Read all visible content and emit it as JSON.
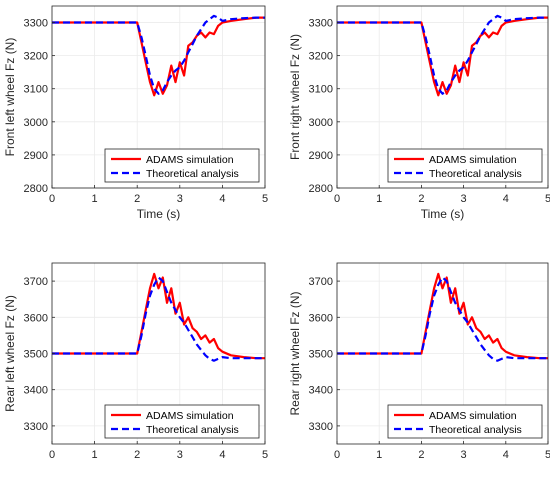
{
  "chart_data": [
    {
      "type": "line",
      "title": "",
      "xlabel": "Time (s)",
      "ylabel": "Front left wheel Fz (N)",
      "xlim": [
        0,
        5
      ],
      "ylim": [
        2800,
        3350
      ],
      "xticks": [
        0,
        1,
        2,
        3,
        4,
        5
      ],
      "yticks": [
        2800,
        2900,
        3000,
        3100,
        3200,
        3300
      ],
      "grid": true,
      "legend_position": "bottom-right",
      "series": [
        {
          "name": "ADAMS simulation",
          "style": "solid",
          "x": [
            0,
            2.0,
            2.1,
            2.2,
            2.3,
            2.4,
            2.5,
            2.6,
            2.7,
            2.8,
            2.9,
            3.0,
            3.1,
            3.2,
            3.3,
            3.4,
            3.5,
            3.6,
            3.7,
            3.8,
            3.9,
            4.0,
            4.2,
            4.5,
            4.8,
            5.0
          ],
          "y": [
            3300,
            3300,
            3240,
            3180,
            3120,
            3080,
            3120,
            3085,
            3110,
            3170,
            3120,
            3180,
            3140,
            3230,
            3240,
            3260,
            3270,
            3255,
            3270,
            3265,
            3290,
            3300,
            3305,
            3310,
            3315,
            3315
          ]
        },
        {
          "name": "Theoretical analysis",
          "style": "dashed",
          "x": [
            0,
            2.0,
            2.1,
            2.2,
            2.3,
            2.4,
            2.5,
            2.6,
            2.7,
            2.8,
            2.9,
            3.0,
            3.1,
            3.2,
            3.3,
            3.4,
            3.5,
            3.6,
            3.7,
            3.8,
            3.9,
            4.0,
            4.2,
            4.5,
            4.8,
            5.0
          ],
          "y": [
            3300,
            3300,
            3255,
            3200,
            3140,
            3100,
            3085,
            3095,
            3120,
            3140,
            3155,
            3165,
            3185,
            3210,
            3235,
            3260,
            3280,
            3300,
            3310,
            3320,
            3315,
            3305,
            3310,
            3313,
            3315,
            3315
          ]
        }
      ]
    },
    {
      "type": "line",
      "title": "",
      "xlabel": "Time (s)",
      "ylabel": "Front right wheel Fz (N)",
      "xlim": [
        0,
        5
      ],
      "ylim": [
        2800,
        3350
      ],
      "xticks": [
        0,
        1,
        2,
        3,
        4,
        5
      ],
      "yticks": [
        2800,
        2900,
        3000,
        3100,
        3200,
        3300
      ],
      "grid": true,
      "legend_position": "bottom-right",
      "series": [
        {
          "name": "ADAMS simulation",
          "style": "solid",
          "x": [
            0,
            2.0,
            2.1,
            2.2,
            2.3,
            2.4,
            2.5,
            2.6,
            2.7,
            2.8,
            2.9,
            3.0,
            3.1,
            3.2,
            3.3,
            3.4,
            3.5,
            3.6,
            3.7,
            3.8,
            3.9,
            4.0,
            4.2,
            4.5,
            4.8,
            5.0
          ],
          "y": [
            3300,
            3300,
            3240,
            3180,
            3120,
            3080,
            3120,
            3085,
            3110,
            3170,
            3120,
            3180,
            3140,
            3230,
            3240,
            3260,
            3270,
            3255,
            3270,
            3265,
            3290,
            3300,
            3305,
            3310,
            3315,
            3315
          ]
        },
        {
          "name": "Theoretical analysis",
          "style": "dashed",
          "x": [
            0,
            2.0,
            2.1,
            2.2,
            2.3,
            2.4,
            2.5,
            2.6,
            2.7,
            2.8,
            2.9,
            3.0,
            3.1,
            3.2,
            3.3,
            3.4,
            3.5,
            3.6,
            3.7,
            3.8,
            3.9,
            4.0,
            4.2,
            4.5,
            4.8,
            5.0
          ],
          "y": [
            3300,
            3300,
            3255,
            3200,
            3140,
            3100,
            3085,
            3095,
            3120,
            3140,
            3155,
            3165,
            3185,
            3210,
            3235,
            3260,
            3280,
            3300,
            3310,
            3320,
            3315,
            3305,
            3310,
            3313,
            3315,
            3315
          ]
        }
      ]
    },
    {
      "type": "line",
      "title": "",
      "xlabel": "",
      "ylabel": "Rear left wheel Fz (N)",
      "xlim": [
        0,
        5
      ],
      "ylim": [
        3250,
        3750
      ],
      "xticks": [
        0,
        1,
        2,
        3,
        4,
        5
      ],
      "yticks": [
        3300,
        3400,
        3500,
        3600,
        3700
      ],
      "grid": true,
      "legend_position": "bottom-right",
      "series": [
        {
          "name": "ADAMS simulation",
          "style": "solid",
          "x": [
            0,
            2.0,
            2.1,
            2.2,
            2.3,
            2.4,
            2.5,
            2.6,
            2.7,
            2.8,
            2.9,
            3.0,
            3.1,
            3.2,
            3.3,
            3.4,
            3.5,
            3.6,
            3.7,
            3.8,
            3.9,
            4.0,
            4.2,
            4.5,
            4.8,
            5.0
          ],
          "y": [
            3500,
            3500,
            3560,
            3620,
            3680,
            3720,
            3680,
            3710,
            3640,
            3680,
            3610,
            3640,
            3580,
            3600,
            3570,
            3560,
            3540,
            3550,
            3530,
            3540,
            3515,
            3505,
            3495,
            3490,
            3487,
            3487
          ]
        },
        {
          "name": "Theoretical analysis",
          "style": "dashed",
          "x": [
            0,
            2.0,
            2.1,
            2.2,
            2.3,
            2.4,
            2.5,
            2.6,
            2.7,
            2.8,
            2.9,
            3.0,
            3.1,
            3.2,
            3.3,
            3.4,
            3.5,
            3.6,
            3.7,
            3.8,
            3.9,
            4.0,
            4.2,
            4.5,
            4.8,
            5.0
          ],
          "y": [
            3500,
            3500,
            3550,
            3610,
            3660,
            3690,
            3710,
            3700,
            3670,
            3640,
            3620,
            3600,
            3585,
            3565,
            3545,
            3525,
            3510,
            3495,
            3485,
            3480,
            3485,
            3490,
            3487,
            3487,
            3487,
            3487
          ]
        }
      ]
    },
    {
      "type": "line",
      "title": "",
      "xlabel": "",
      "ylabel": "Rear right wheel Fz (N)",
      "xlim": [
        0,
        5
      ],
      "ylim": [
        3250,
        3750
      ],
      "xticks": [
        0,
        1,
        2,
        3,
        4,
        5
      ],
      "yticks": [
        3300,
        3400,
        3500,
        3600,
        3700
      ],
      "grid": true,
      "legend_position": "bottom-right",
      "series": [
        {
          "name": "ADAMS simulation",
          "style": "solid",
          "x": [
            0,
            2.0,
            2.1,
            2.2,
            2.3,
            2.4,
            2.5,
            2.6,
            2.7,
            2.8,
            2.9,
            3.0,
            3.1,
            3.2,
            3.3,
            3.4,
            3.5,
            3.6,
            3.7,
            3.8,
            3.9,
            4.0,
            4.2,
            4.5,
            4.8,
            5.0
          ],
          "y": [
            3500,
            3500,
            3560,
            3620,
            3680,
            3720,
            3680,
            3710,
            3640,
            3680,
            3610,
            3640,
            3580,
            3600,
            3570,
            3560,
            3540,
            3550,
            3530,
            3540,
            3515,
            3505,
            3495,
            3490,
            3487,
            3487
          ]
        },
        {
          "name": "Theoretical analysis",
          "style": "dashed",
          "x": [
            0,
            2.0,
            2.1,
            2.2,
            2.3,
            2.4,
            2.5,
            2.6,
            2.7,
            2.8,
            2.9,
            3.0,
            3.1,
            3.2,
            3.3,
            3.4,
            3.5,
            3.6,
            3.7,
            3.8,
            3.9,
            4.0,
            4.2,
            4.5,
            4.8,
            5.0
          ],
          "y": [
            3500,
            3500,
            3550,
            3610,
            3660,
            3690,
            3710,
            3700,
            3670,
            3640,
            3620,
            3600,
            3585,
            3565,
            3545,
            3525,
            3510,
            3495,
            3485,
            3480,
            3485,
            3490,
            3487,
            3487,
            3487,
            3487
          ]
        }
      ]
    }
  ],
  "colors": {
    "adams": "#ff0000",
    "theory": "#0000ff",
    "grid": "#ebebeb",
    "axis": "#262626"
  }
}
